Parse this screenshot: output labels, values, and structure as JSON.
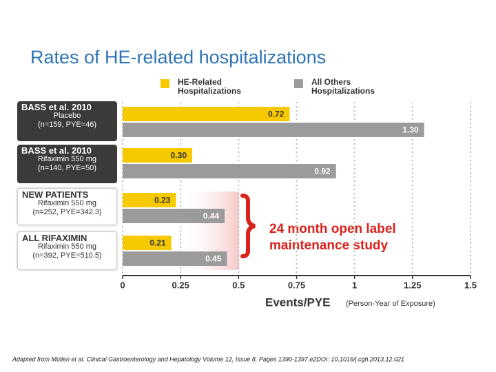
{
  "chart_data": {
    "type": "bar",
    "orientation": "horizontal",
    "title": "Rates of HE-related hospitalizations",
    "categories": [
      "BASS et al. 2010",
      "BASS et al. 2010",
      "NEW PATIENTS",
      "ALL  RIFAXIMIN"
    ],
    "category_details": [
      [
        "Placebo",
        "(n=159, PYE=46)"
      ],
      [
        "Rifaximin 550 mg",
        "(n=140, PYE=50)"
      ],
      [
        "Rifaximin 550 mg",
        "(n=252, PYE=342.3)"
      ],
      [
        "Rifaximin 550 mg",
        "(n=392, PYE=510.5)"
      ]
    ],
    "series": [
      {
        "name": "HE-Related Hospitalizations",
        "color": "#f7c900",
        "values": [
          0.72,
          0.3,
          0.23,
          0.21
        ],
        "value_labels": [
          "0.72",
          "0.30",
          "0.23",
          "0.21"
        ]
      },
      {
        "name": "All Others Hospitalizations",
        "color": "#9b9b9b",
        "values": [
          1.3,
          0.92,
          0.44,
          0.45
        ],
        "value_labels": [
          "1.30",
          "0.92",
          "0.44",
          "0.45"
        ]
      }
    ],
    "xlim": [
      0,
      1.5
    ],
    "xticks": [
      0,
      0.25,
      0.5,
      0.75,
      1,
      1.25,
      1.5
    ],
    "grid": true,
    "xlabel": "Events/PYE",
    "xlabel_note": "(Person-Year of Exposure)",
    "annotation": [
      "24 month open label",
      "maintenance study"
    ],
    "footnote": "Adapted from Mullen et al. Clinical Gastroenterology and Hepatology Volume 12, Issue 8, Pages 1390-1397.e2DOI: 10.1016/j.cgh.2013.12.021"
  }
}
